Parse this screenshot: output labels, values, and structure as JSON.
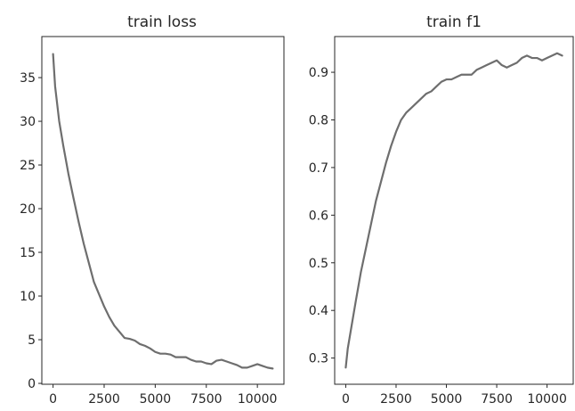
{
  "chart_data": [
    {
      "type": "line",
      "title": "train loss",
      "xlabel": "",
      "ylabel": "",
      "xlim": [
        -550,
        11300
      ],
      "ylim": [
        -0.1,
        39.7
      ],
      "xticks": [
        0,
        2500,
        5000,
        7500,
        10000
      ],
      "yticks": [
        0,
        5,
        10,
        15,
        20,
        25,
        30,
        35
      ],
      "grid": false,
      "series": [
        {
          "color": "#6e6e6e",
          "x": [
            0,
            100,
            300,
            500,
            750,
            1000,
            1250,
            1500,
            1750,
            2000,
            2250,
            2500,
            2750,
            3000,
            3250,
            3500,
            3750,
            4000,
            4250,
            4500,
            4750,
            5000,
            5250,
            5500,
            5750,
            6000,
            6250,
            6500,
            6750,
            7000,
            7250,
            7500,
            7750,
            8000,
            8250,
            8500,
            8750,
            9000,
            9250,
            9500,
            9750,
            10000,
            10250,
            10500,
            10750
          ],
          "y": [
            37.7,
            34.0,
            30.0,
            27.2,
            24.0,
            21.2,
            18.5,
            16.0,
            13.8,
            11.6,
            10.2,
            8.8,
            7.6,
            6.6,
            5.9,
            5.2,
            5.1,
            4.9,
            4.5,
            4.3,
            4.0,
            3.6,
            3.4,
            3.4,
            3.3,
            3.0,
            3.0,
            3.0,
            2.7,
            2.5,
            2.5,
            2.3,
            2.2,
            2.6,
            2.7,
            2.5,
            2.3,
            2.1,
            1.8,
            1.8,
            2.0,
            2.2,
            2.0,
            1.8,
            1.7
          ]
        }
      ]
    },
    {
      "type": "line",
      "title": "train f1",
      "xlabel": "",
      "ylabel": "",
      "xlim": [
        -550,
        11300
      ],
      "ylim": [
        0.245,
        0.975
      ],
      "xticks": [
        0,
        2500,
        5000,
        7500,
        10000
      ],
      "yticks": [
        0.3,
        0.4,
        0.5,
        0.6,
        0.7,
        0.8,
        0.9
      ],
      "grid": false,
      "series": [
        {
          "color": "#6e6e6e",
          "x": [
            0,
            100,
            300,
            500,
            750,
            1000,
            1250,
            1500,
            1750,
            2000,
            2250,
            2500,
            2750,
            3000,
            3250,
            3500,
            3750,
            4000,
            4250,
            4500,
            4750,
            5000,
            5250,
            5500,
            5750,
            6000,
            6250,
            6500,
            6750,
            7000,
            7250,
            7500,
            7750,
            8000,
            8250,
            8500,
            8750,
            9000,
            9250,
            9500,
            9750,
            10000,
            10250,
            10500,
            10750
          ],
          "y": [
            0.28,
            0.32,
            0.37,
            0.42,
            0.48,
            0.53,
            0.58,
            0.63,
            0.67,
            0.71,
            0.745,
            0.775,
            0.8,
            0.815,
            0.825,
            0.835,
            0.845,
            0.855,
            0.86,
            0.87,
            0.88,
            0.885,
            0.885,
            0.89,
            0.895,
            0.895,
            0.895,
            0.905,
            0.91,
            0.915,
            0.92,
            0.925,
            0.915,
            0.91,
            0.915,
            0.92,
            0.93,
            0.935,
            0.93,
            0.93,
            0.925,
            0.93,
            0.935,
            0.94,
            0.935
          ]
        }
      ]
    }
  ]
}
